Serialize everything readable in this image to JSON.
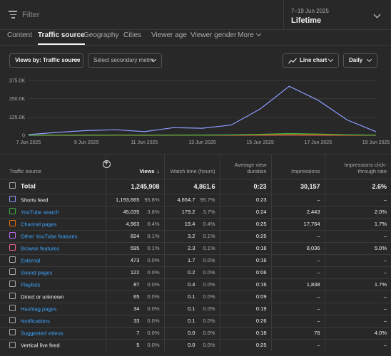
{
  "filter": {
    "placeholder": "Filter"
  },
  "date": {
    "range": "7–19 Jun 2025",
    "label": "Lifetime"
  },
  "tabs": [
    {
      "label": "Content",
      "active": false
    },
    {
      "label": "Traffic source",
      "active": true
    },
    {
      "label": "Geography",
      "active": false
    },
    {
      "label": "Cities",
      "active": false
    },
    {
      "label": "Viewer age",
      "active": false
    },
    {
      "label": "Viewer gender",
      "active": false
    },
    {
      "label": "More",
      "active": false
    }
  ],
  "controls": {
    "primary_metric": "Views by: Traffic source",
    "secondary_metric": "Select secondary metric",
    "chart_type": "Line chart",
    "interval": "Daily"
  },
  "chart_data": {
    "type": "line",
    "x": [
      "7 Jun 2025",
      "8 Jun 2025",
      "9 Jun 2025",
      "10 Jun 2025",
      "11 Jun 2025",
      "12 Jun 2025",
      "13 Jun 2025",
      "14 Jun 2025",
      "15 Jun 2025",
      "16 Jun 2025",
      "17 Jun 2025",
      "18 Jun 2025",
      "19 Jun 2025"
    ],
    "xtick_labels": [
      "7 Jun 2025",
      "9 Jun 2025",
      "11 Jun 2025",
      "13 Jun 2025",
      "15 Jun 2025",
      "17 Jun 2025",
      "19 Jun 2025"
    ],
    "ytick_labels": [
      "0",
      "125.0K",
      "250.0K",
      "375.0K"
    ],
    "ylim": [
      0,
      375000
    ],
    "grid": true,
    "series": [
      {
        "color": "#8e9bff",
        "values": [
          5000,
          20000,
          32000,
          38000,
          25000,
          52000,
          48000,
          70000,
          180000,
          335000,
          240000,
          105000,
          25000
        ]
      },
      {
        "color": "#3cb043",
        "values": [
          500,
          800,
          1200,
          1500,
          1000,
          2000,
          2000,
          3000,
          7000,
          12000,
          9000,
          4000,
          1000
        ]
      },
      {
        "color": "#e8710a",
        "values": [
          300,
          400,
          600,
          700,
          500,
          900,
          800,
          1300,
          2500,
          4000,
          3000,
          1500,
          400
        ]
      },
      {
        "color": "#f06292",
        "values": [
          100,
          200,
          200,
          300,
          200,
          400,
          300,
          500,
          900,
          1500,
          1000,
          600,
          200
        ]
      }
    ]
  },
  "table": {
    "headers": {
      "source": "Traffic source",
      "views": "Views",
      "watch_time": "Watch time (hours)",
      "avg_view": "Average view duration",
      "impressions": "Impressions",
      "ctr": "Impressions click-through rate"
    },
    "total": {
      "label": "Total",
      "views": "1,245,908",
      "watch": "4,861.6",
      "avg": "0:23",
      "impressions": "30,157",
      "ctr": "2.6%"
    },
    "rows": [
      {
        "label": "Shorts feed",
        "link": false,
        "color": "#8e9bff",
        "views": "1,193,665",
        "views_pct": "95.8%",
        "watch": "4,654.7",
        "watch_pct": "95.7%",
        "avg": "0:23",
        "impressions": "–",
        "ctr": "–"
      },
      {
        "label": "YouTube search",
        "link": true,
        "color": "#3cb043",
        "views": "45,035",
        "views_pct": "3.6%",
        "watch": "179.2",
        "watch_pct": "3.7%",
        "avg": "0:24",
        "impressions": "2,443",
        "ctr": "2.0%"
      },
      {
        "label": "Channel pages",
        "link": true,
        "color": "#e8710a",
        "views": "4,963",
        "views_pct": "0.4%",
        "watch": "19.4",
        "watch_pct": "0.4%",
        "avg": "0:25",
        "impressions": "17,764",
        "ctr": "1.7%"
      },
      {
        "label": "Other YouTube features",
        "link": true,
        "color": "#b96cf0",
        "views": "824",
        "views_pct": "0.1%",
        "watch": "3.2",
        "watch_pct": "0.1%",
        "avg": "0:25",
        "impressions": "–",
        "ctr": "–"
      },
      {
        "label": "Browse features",
        "link": true,
        "color": "#f06292",
        "views": "595",
        "views_pct": "0.1%",
        "watch": "2.3",
        "watch_pct": "0.1%",
        "avg": "0:18",
        "impressions": "8,036",
        "ctr": "5.0%"
      },
      {
        "label": "External",
        "link": true,
        "color": "#aaaaaa",
        "views": "473",
        "views_pct": "0.0%",
        "watch": "1.7",
        "watch_pct": "0.0%",
        "avg": "0:16",
        "impressions": "–",
        "ctr": "–"
      },
      {
        "label": "Sound pages",
        "link": true,
        "color": "#aaaaaa",
        "views": "122",
        "views_pct": "0.0%",
        "watch": "0.2",
        "watch_pct": "0.0%",
        "avg": "0:06",
        "impressions": "–",
        "ctr": "–"
      },
      {
        "label": "Playlists",
        "link": true,
        "color": "#aaaaaa",
        "views": "87",
        "views_pct": "0.0%",
        "watch": "0.4",
        "watch_pct": "0.0%",
        "avg": "0:16",
        "impressions": "1,838",
        "ctr": "1.7%"
      },
      {
        "label": "Direct or unknown",
        "link": false,
        "color": "#aaaaaa",
        "views": "65",
        "views_pct": "0.0%",
        "watch": "0.1",
        "watch_pct": "0.0%",
        "avg": "0:09",
        "impressions": "–",
        "ctr": "–"
      },
      {
        "label": "Hashtag pages",
        "link": true,
        "color": "#aaaaaa",
        "views": "34",
        "views_pct": "0.0%",
        "watch": "0.1",
        "watch_pct": "0.0%",
        "avg": "0:19",
        "impressions": "–",
        "ctr": "–"
      },
      {
        "label": "Notifications",
        "link": true,
        "color": "#aaaaaa",
        "views": "33",
        "views_pct": "0.0%",
        "watch": "0.1",
        "watch_pct": "0.0%",
        "avg": "0:26",
        "impressions": "–",
        "ctr": "–"
      },
      {
        "label": "Suggested videos",
        "link": true,
        "color": "#aaaaaa",
        "views": "7",
        "views_pct": "0.0%",
        "watch": "0.0",
        "watch_pct": "0.0%",
        "avg": "0:18",
        "impressions": "76",
        "ctr": "4.0%"
      },
      {
        "label": "Vertical live feed",
        "link": false,
        "color": "#aaaaaa",
        "views": "5",
        "views_pct": "0.0%",
        "watch": "0.0",
        "watch_pct": "0.0%",
        "avg": "0:25",
        "impressions": "–",
        "ctr": "–"
      }
    ]
  }
}
